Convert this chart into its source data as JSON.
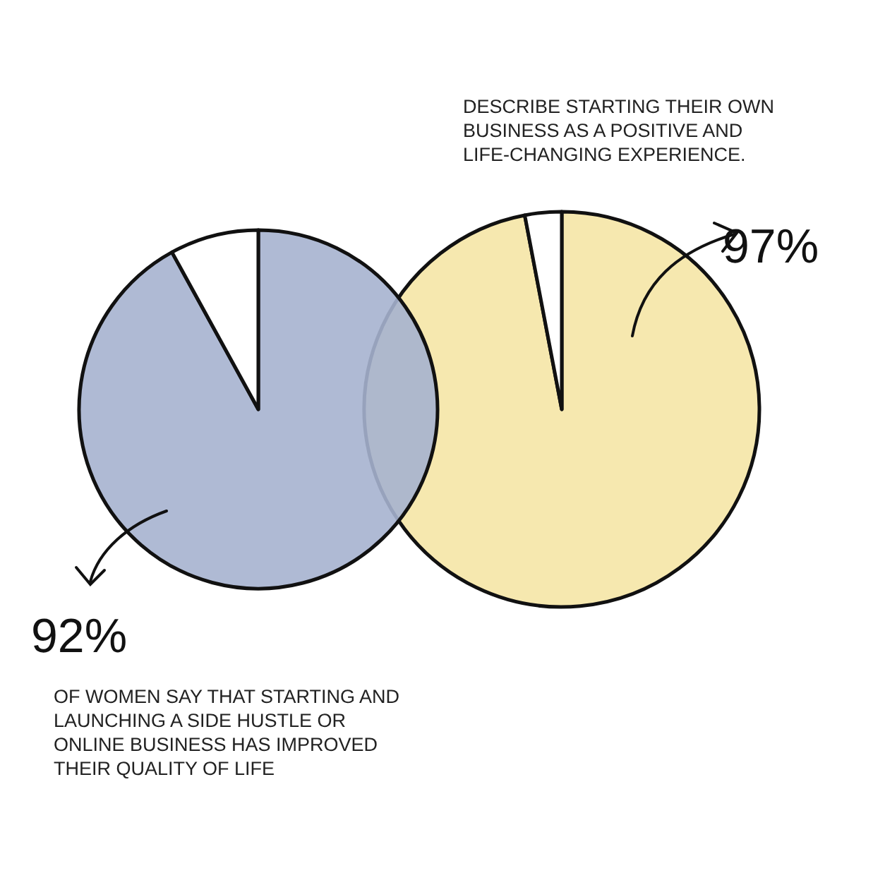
{
  "chart_data": [
    {
      "type": "pie",
      "categories": [
        null,
        null
      ],
      "values": [
        92,
        8
      ],
      "colors": [
        "#a6b3cf",
        "#ffffff"
      ],
      "value_labels": [
        "92%",
        null
      ],
      "annotations": [
        "OF WOMEN SAY THAT STARTING AND LAUNCHING A SIDE HUSTLE OR ONLINE BUSINESS HAS IMPROVED THEIR QUALITY OF LIFE"
      ]
    },
    {
      "type": "pie",
      "categories": [
        null,
        null
      ],
      "values": [
        97,
        3
      ],
      "colors": [
        "#f5e6a6",
        "#ffffff"
      ],
      "value_labels": [
        "97%",
        null
      ],
      "annotations": [
        "DESCRIBE STARTING THEIR OWN BUSINESS AS A POSITIVE AND LIFE-CHANGING EXPERIENCE."
      ]
    }
  ]
}
